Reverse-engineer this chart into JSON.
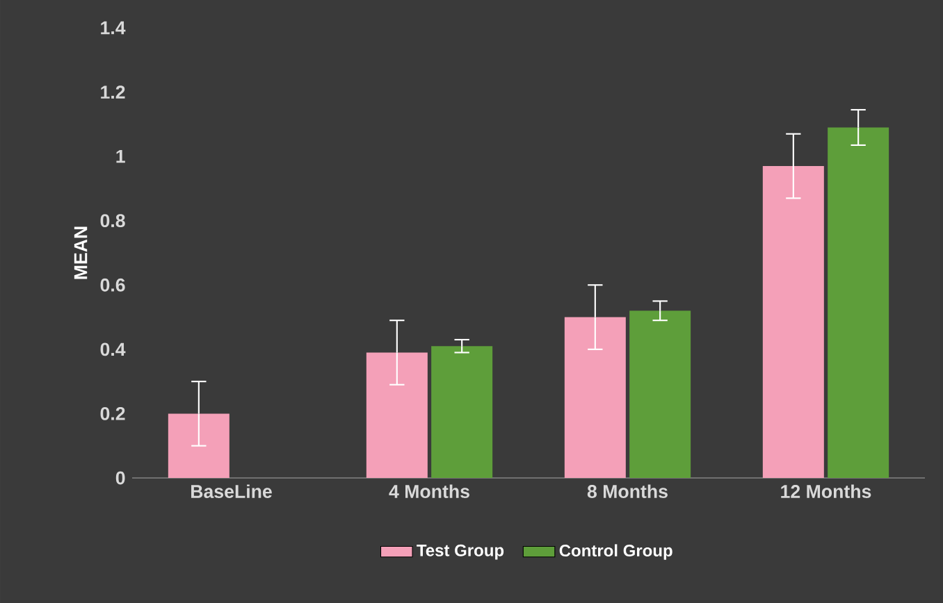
{
  "chart_data": {
    "type": "bar",
    "ylabel": "MEAN",
    "categories": [
      "BaseLine",
      "4 Months",
      "8 Months",
      "12 Months"
    ],
    "series": [
      {
        "name": "Test Group",
        "color": "#f4a0b8",
        "values": [
          0.2,
          0.39,
          0.5,
          0.97
        ],
        "errors": [
          0.1,
          0.1,
          0.1,
          0.1
        ]
      },
      {
        "name": "Control Group",
        "color": "#5e9e3a",
        "values": [
          0,
          0.41,
          0.52,
          1.09
        ],
        "errors": [
          null,
          0.02,
          0.03,
          0.055
        ]
      }
    ],
    "ylim": [
      0,
      1.4
    ],
    "yticks": [
      0,
      0.2,
      0.4,
      0.6,
      0.8,
      1,
      1.2,
      1.4
    ],
    "legend": "bottom"
  }
}
